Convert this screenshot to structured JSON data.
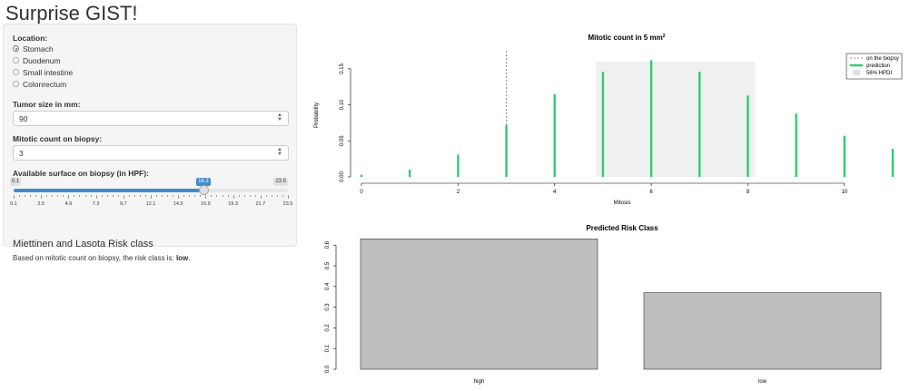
{
  "app_title": "Surprise GIST!",
  "location": {
    "label": "Location:",
    "options": [
      "Stomach",
      "Duodenum",
      "Small intestine",
      "Colonrectum"
    ],
    "selected_index": 0
  },
  "tumor_size": {
    "label": "Tumor size in mm:",
    "value": "90"
  },
  "mitotic_count": {
    "label": "Mitotic count on biopsy:",
    "value": "3"
  },
  "surface": {
    "label": "Available surface on biopsy (in HPF):",
    "min": "0.1",
    "max": "23.5",
    "current": "16.3",
    "current_value": 16.3,
    "min_value": 0.1,
    "max_value": 23.5,
    "ticks": [
      "0.1",
      "2.5",
      "4.9",
      "7.3",
      "9.7",
      "12.1",
      "14.5",
      "16.9",
      "19.3",
      "21.7",
      "23.5"
    ]
  },
  "risk": {
    "title": "Miettinen and Lasota Risk class",
    "text_prefix": "Based on mitotic count on biopsy, the risk class is: ",
    "class": "low",
    "text_suffix": "."
  },
  "chart_data": [
    {
      "type": "bar",
      "title": "Mitotic count in 5 mm",
      "title_superscript": "2",
      "xlabel": "Mitosis",
      "ylabel": "Probability",
      "x": [
        0,
        1,
        2,
        3,
        4,
        5,
        6,
        7,
        8,
        9,
        10,
        11
      ],
      "values": [
        0.003,
        0.01,
        0.031,
        0.072,
        0.115,
        0.146,
        0.162,
        0.146,
        0.113,
        0.088,
        0.057,
        0.039
      ],
      "xlim": [
        0,
        11
      ],
      "ylim": [
        0,
        0.17
      ],
      "xticks": [
        "0",
        "2",
        "4",
        "6",
        "8",
        "10"
      ],
      "yticks": [
        "0.00",
        "0.05",
        "0.10",
        "0.15"
      ],
      "biopsy_value": 3,
      "hpdi": [
        4.85,
        8.15
      ],
      "bar_color": "#2ecc71",
      "hpdi_color": "#f0f0f0",
      "legend": {
        "position": "top-right",
        "entries": [
          "on the biopsy",
          "prediction",
          "56% HPDI"
        ]
      }
    },
    {
      "type": "bar",
      "title": "Predicted Risk Class",
      "categories": [
        "high",
        "low"
      ],
      "values": [
        0.63,
        0.37
      ],
      "ylim": [
        0,
        0.6
      ],
      "yticks": [
        "0.0",
        "0.1",
        "0.2",
        "0.3",
        "0.4",
        "0.5",
        "0.6"
      ],
      "bar_color": "#bebebe"
    }
  ]
}
